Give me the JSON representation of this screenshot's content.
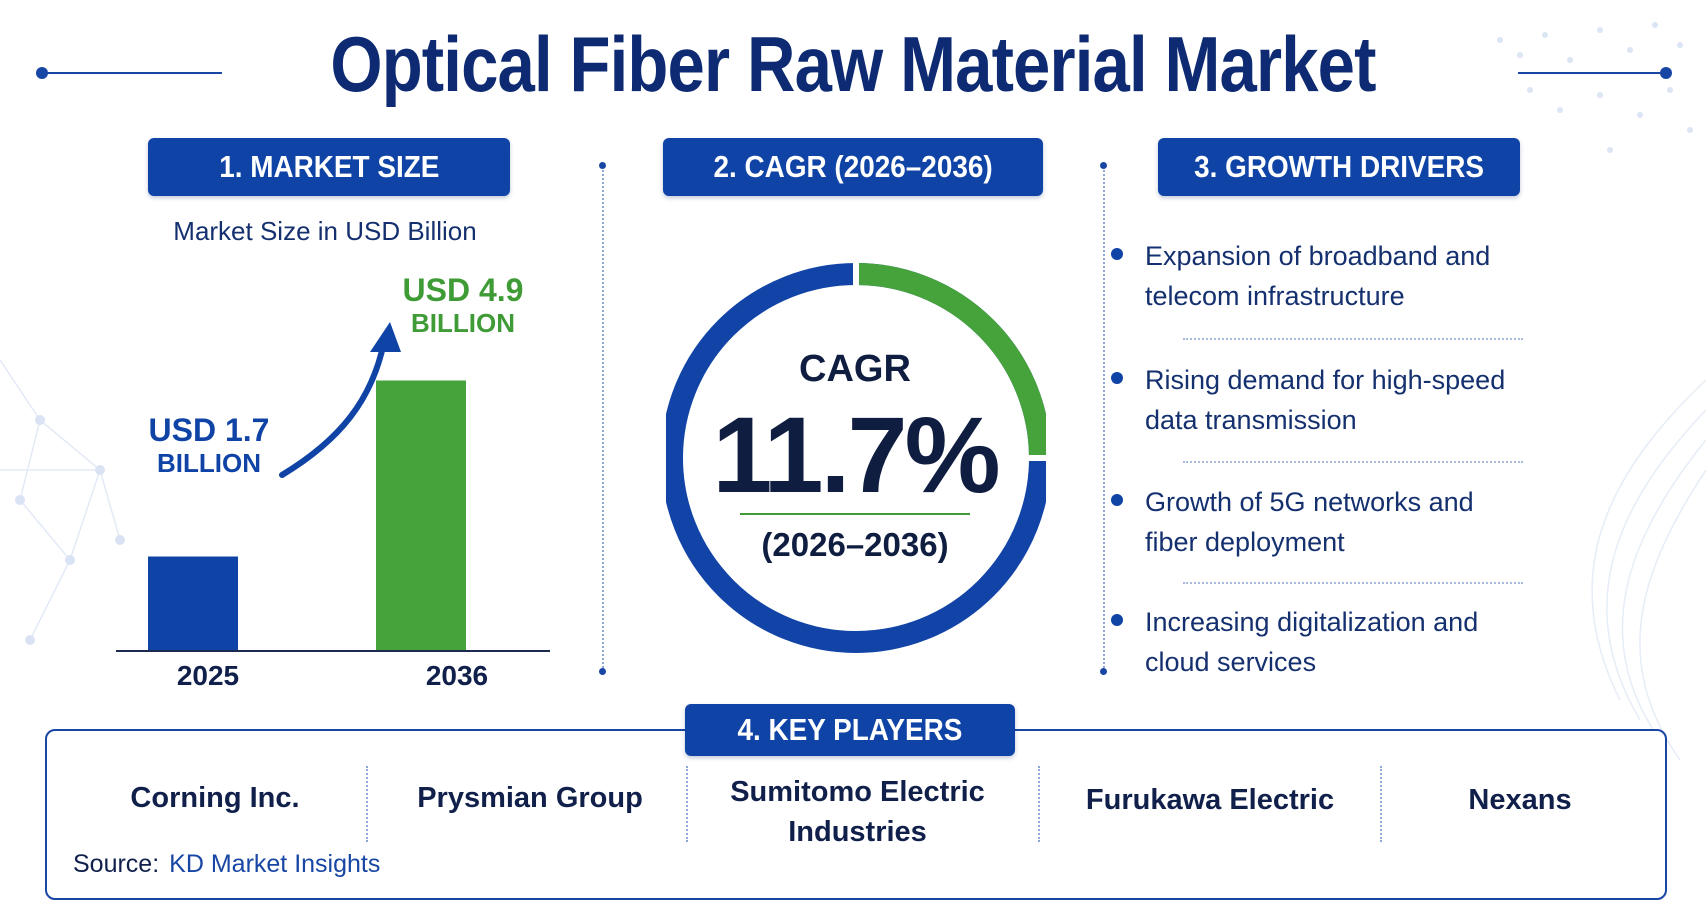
{
  "title": "Optical Fiber Raw Material Market",
  "colors": {
    "primary": "#0f44a6",
    "accent_green": "#46a23a",
    "text_dark": "#10204a"
  },
  "sections": {
    "market_size": {
      "header": "1. MARKET SIZE",
      "caption": "Market Size in USD Billion"
    },
    "cagr": {
      "header": "2. CAGR (2026–2036)",
      "label": "CAGR",
      "value": "11.7%",
      "period": "(2026–2036)",
      "ring_fraction": 0.25
    },
    "growth_drivers": {
      "header": "3. GROWTH DRIVERS",
      "items": [
        {
          "line1": "Expansion of broadband and",
          "line2": "telecom infrastructure"
        },
        {
          "line1": "Rising demand for high-speed",
          "line2": "data transmission"
        },
        {
          "line1": "Growth of 5G networks and",
          "line2": "fiber deployment"
        },
        {
          "line1": "Increasing digitalization and",
          "line2": "cloud services"
        }
      ]
    },
    "key_players": {
      "header": "4. KEY PLAYERS",
      "players": [
        {
          "line1": "Corning Inc.",
          "line2": ""
        },
        {
          "line1": "Prysmian Group",
          "line2": ""
        },
        {
          "line1": "Sumitomo Electric",
          "line2": "Industries"
        },
        {
          "line1": "Furukawa Electric",
          "line2": ""
        },
        {
          "line1": "Nexans",
          "line2": ""
        }
      ],
      "source_label": "Source:",
      "source_value": "KD Market Insights"
    }
  },
  "chart_data": {
    "type": "bar",
    "categories": [
      "2025",
      "2036"
    ],
    "values": [
      1.7,
      4.9
    ],
    "value_labels": [
      {
        "big": "USD 1.7",
        "small": "BILLION"
      },
      {
        "big": "USD 4.9",
        "small": "BILLION"
      }
    ],
    "colors": [
      "#0f44a6",
      "#46a23a"
    ],
    "ylabel": "Market Size in USD Billion",
    "unit": "USD Billion"
  }
}
